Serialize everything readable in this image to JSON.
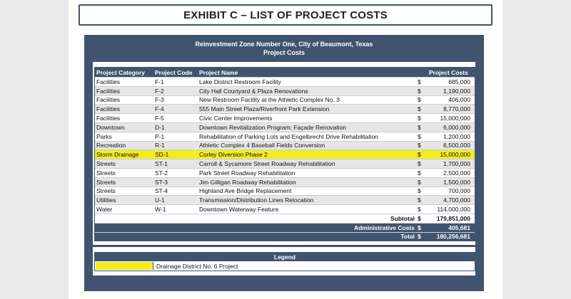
{
  "exhibit_title": "EXHIBIT C – LIST OF PROJECT COSTS",
  "report": {
    "header_line1": "Reinvestment Zone Number One, City of Beaumont, Texas",
    "header_line2": "Project Costs"
  },
  "colors": {
    "frame": "#41546f",
    "highlight": "#f4ec20",
    "alt_row": "#e6e6e6"
  },
  "table": {
    "columns": [
      "Project Category",
      "Project Code",
      "Project Name",
      "Project Costs"
    ],
    "rows": [
      {
        "category": "Facilities",
        "code": "F-1",
        "name": "Lake District Restroom Facility",
        "dollar": "$",
        "cost": "685,000",
        "highlight": false
      },
      {
        "category": "Facilities",
        "code": "F-2",
        "name": "City Hall Courtyard & Plaza Renovations",
        "dollar": "$",
        "cost": "1,190,000",
        "highlight": false
      },
      {
        "category": "Facilities",
        "code": "F-3",
        "name": "New Restroom Facility at the Athletic Complex No. 3",
        "dollar": "$",
        "cost": "406,000",
        "highlight": false
      },
      {
        "category": "Facilities",
        "code": "F-4",
        "name": "555 Main Street Plaza/Riverfront Park Extension",
        "dollar": "$",
        "cost": "8,770,000",
        "highlight": false
      },
      {
        "category": "Facilities",
        "code": "F-5",
        "name": "Civic Center Improvements",
        "dollar": "$",
        "cost": "15,000,000",
        "highlight": false
      },
      {
        "category": "Downtown",
        "code": "D-1",
        "name": "Downtown Revitalization Program; Façade Renovation",
        "dollar": "$",
        "cost": "6,000,000",
        "highlight": false
      },
      {
        "category": "Parks",
        "code": "P-1",
        "name": "Rehabilitation of Parking Lots and Engelbrecht Drive Rehabilitation",
        "dollar": "$",
        "cost": "1,200,000",
        "highlight": false
      },
      {
        "category": "Recreation",
        "code": "R-1",
        "name": "Athletic Complex 4 Baseball Fields Conversion",
        "dollar": "$",
        "cost": "6,500,000",
        "highlight": false
      },
      {
        "category": "Storm Drainage",
        "code": "SD-1",
        "name": "Corley Diversion Phase 2",
        "dollar": "$",
        "cost": "15,000,000",
        "highlight": true
      },
      {
        "category": "Streets",
        "code": "ST-1",
        "name": "Carroll & Sycamore Street Roadway Rehabilitation",
        "dollar": "$",
        "cost": "1,700,000",
        "highlight": false
      },
      {
        "category": "Streets",
        "code": "ST-2",
        "name": "Park Street Roadway Rehabilitation",
        "dollar": "$",
        "cost": "2,500,000",
        "highlight": false
      },
      {
        "category": "Streets",
        "code": "ST-3",
        "name": "Jim Gilligan Roadway Rehabilitation",
        "dollar": "$",
        "cost": "1,500,000",
        "highlight": false
      },
      {
        "category": "Streets",
        "code": "ST-4",
        "name": "Highland Ave Bridge Replacement",
        "dollar": "$",
        "cost": "700,000",
        "highlight": false
      },
      {
        "category": "Utilities",
        "code": "U-1",
        "name": "Transmission/Distribution Lines Relocation",
        "dollar": "$",
        "cost": "4,700,000",
        "highlight": false
      },
      {
        "category": "Water",
        "code": "W-1",
        "name": "Downtown Waterway Feature",
        "dollar": "$",
        "cost": "114,000,000",
        "highlight": false
      }
    ],
    "summary": [
      {
        "label": "Subtotal",
        "dollar": "$",
        "value": "179,851,000"
      },
      {
        "label": "Administrative Costs",
        "dollar": "$",
        "value": "405,681"
      },
      {
        "label": "Total",
        "dollar": "$",
        "value": "180,256,681"
      }
    ]
  },
  "legend": {
    "title": "Legend",
    "items": [
      {
        "label": "Drainage District No. 6 Project",
        "color": "#f4ec20"
      }
    ]
  }
}
